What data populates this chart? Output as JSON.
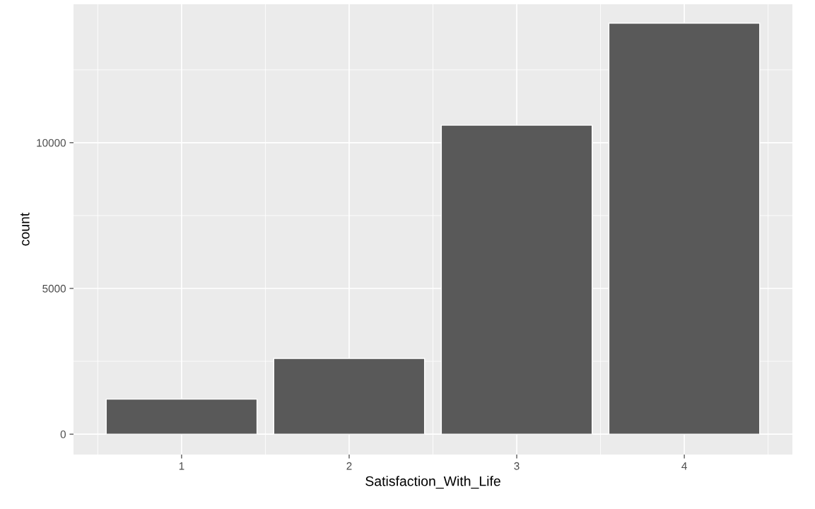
{
  "chart_data": {
    "type": "bar",
    "xlabel": "Satisfaction_With_Life",
    "ylabel": "count",
    "x": [
      1,
      2,
      3,
      4
    ],
    "values": [
      1200,
      2600,
      10600,
      14100
    ],
    "color": "#595959",
    "xlim": [
      0.355,
      4.645
    ],
    "xticks": [
      1,
      2,
      3,
      4
    ],
    "ylim": [
      -700,
      14750
    ],
    "yticks": [
      0,
      5000,
      10000
    ],
    "grid": true
  }
}
